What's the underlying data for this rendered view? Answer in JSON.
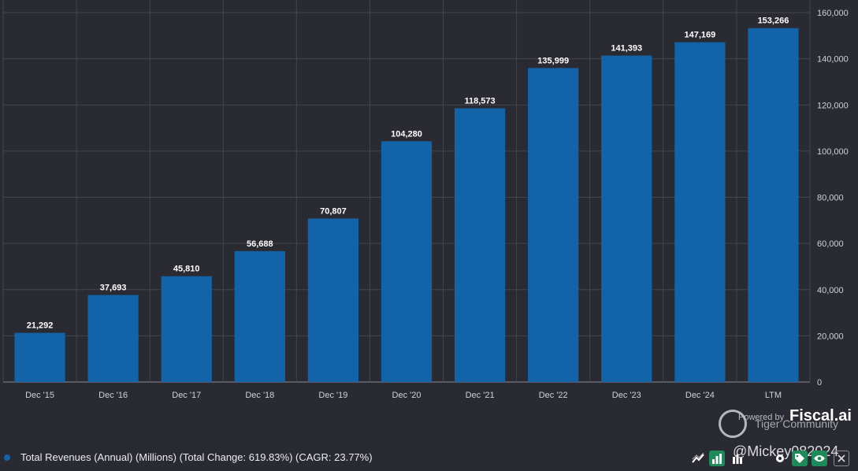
{
  "chart_data": {
    "type": "bar",
    "categories": [
      "Dec '15",
      "Dec '16",
      "Dec '17",
      "Dec '18",
      "Dec '19",
      "Dec '20",
      "Dec '21",
      "Dec '22",
      "Dec '23",
      "Dec '24",
      "LTM"
    ],
    "values": [
      21292,
      37693,
      45810,
      56688,
      70807,
      104280,
      118573,
      135999,
      141393,
      147169,
      153266
    ],
    "data_labels": [
      "21,292",
      "37,693",
      "45,810",
      "56,688",
      "70,807",
      "104,280",
      "118,573",
      "135,999",
      "141,393",
      "147,169",
      "153,266"
    ],
    "y_ticks": [
      0,
      20000,
      40000,
      60000,
      80000,
      100000,
      120000,
      140000,
      160000
    ],
    "y_tick_labels": [
      "0",
      "20,000",
      "40,000",
      "60,000",
      "80,000",
      "100,000",
      "120,000",
      "140,000",
      "160,000"
    ],
    "ylim": [
      0,
      160000
    ],
    "yaxis_side": "right",
    "grid": true,
    "bar_color": "#1363a8"
  },
  "legend": {
    "text": "Total Revenues (Annual) (Millions) (Total Change: 619.83%) (CAGR: 23.77%)"
  },
  "branding": {
    "powered_by": "Powered by",
    "fiscal": "Fiscal.ai",
    "watermark": "Tiger Community",
    "handle": "@Mickey082024"
  },
  "toolbar": {
    "icons": [
      "trend-icon",
      "bar-chart-icon",
      "column-chart-icon",
      "gear-icon",
      "tag-icon",
      "eye-icon",
      "close-icon"
    ]
  },
  "colors": {
    "background": "#2a2a33",
    "grid": "#4a4a55",
    "bar": "#1363a8",
    "accent_green": "#1e8a5a"
  }
}
